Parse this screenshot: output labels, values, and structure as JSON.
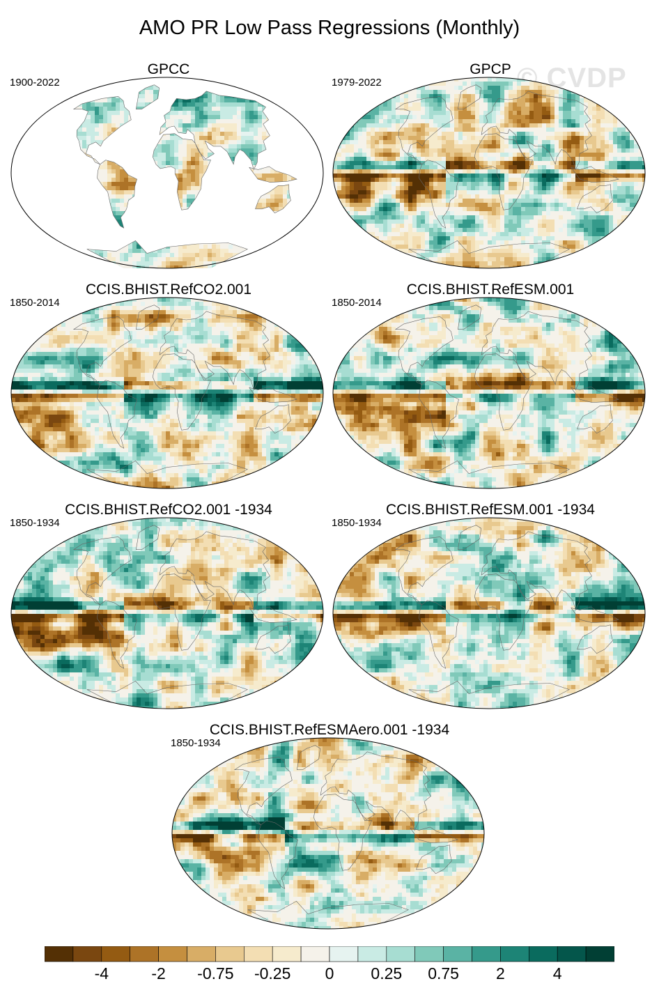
{
  "title": "AMO PR Low Pass Regressions (Monthly)",
  "watermark": "© CVDP",
  "colors": {
    "palette": [
      "#543005",
      "#7a4710",
      "#945b12",
      "#ad7327",
      "#c58f3f",
      "#d8ad66",
      "#e8c98f",
      "#f3deb3",
      "#f6ebcd",
      "#f5f2ea",
      "#e6f3f0",
      "#c9ebe4",
      "#a7ddd2",
      "#80c9b9",
      "#5ab3a4",
      "#359a8b",
      "#1d8476",
      "#0a6b5e",
      "#04564b",
      "#013f34"
    ],
    "land_mask": "#ffffff",
    "outline": "#000000",
    "coast": "#666666"
  },
  "panels": [
    {
      "name": "GPCC",
      "years": "1900-2022",
      "field": "obs-land"
    },
    {
      "name": "GPCP",
      "years": "1979-2022",
      "field": "obs-global"
    },
    {
      "name": "CCIS.BHIST.RefCO2.001",
      "years": "1850-2014",
      "field": "model"
    },
    {
      "name": "CCIS.BHIST.RefESM.001",
      "years": "1850-2014",
      "field": "model"
    },
    {
      "name": "CCIS.BHIST.RefCO2.001 -1934",
      "years": "1850-1934",
      "field": "model"
    },
    {
      "name": "CCIS.BHIST.RefESM.001 -1934",
      "years": "1850-1934",
      "field": "model"
    },
    {
      "name": "CCIS.BHIST.RefESMAero.001 -1934",
      "years": "1850-1934",
      "field": "model"
    }
  ],
  "colorbar": {
    "labels": [
      "-4",
      "-2",
      "-0.75",
      "-0.25",
      "0",
      "0.25",
      "0.75",
      "2",
      "4"
    ]
  }
}
